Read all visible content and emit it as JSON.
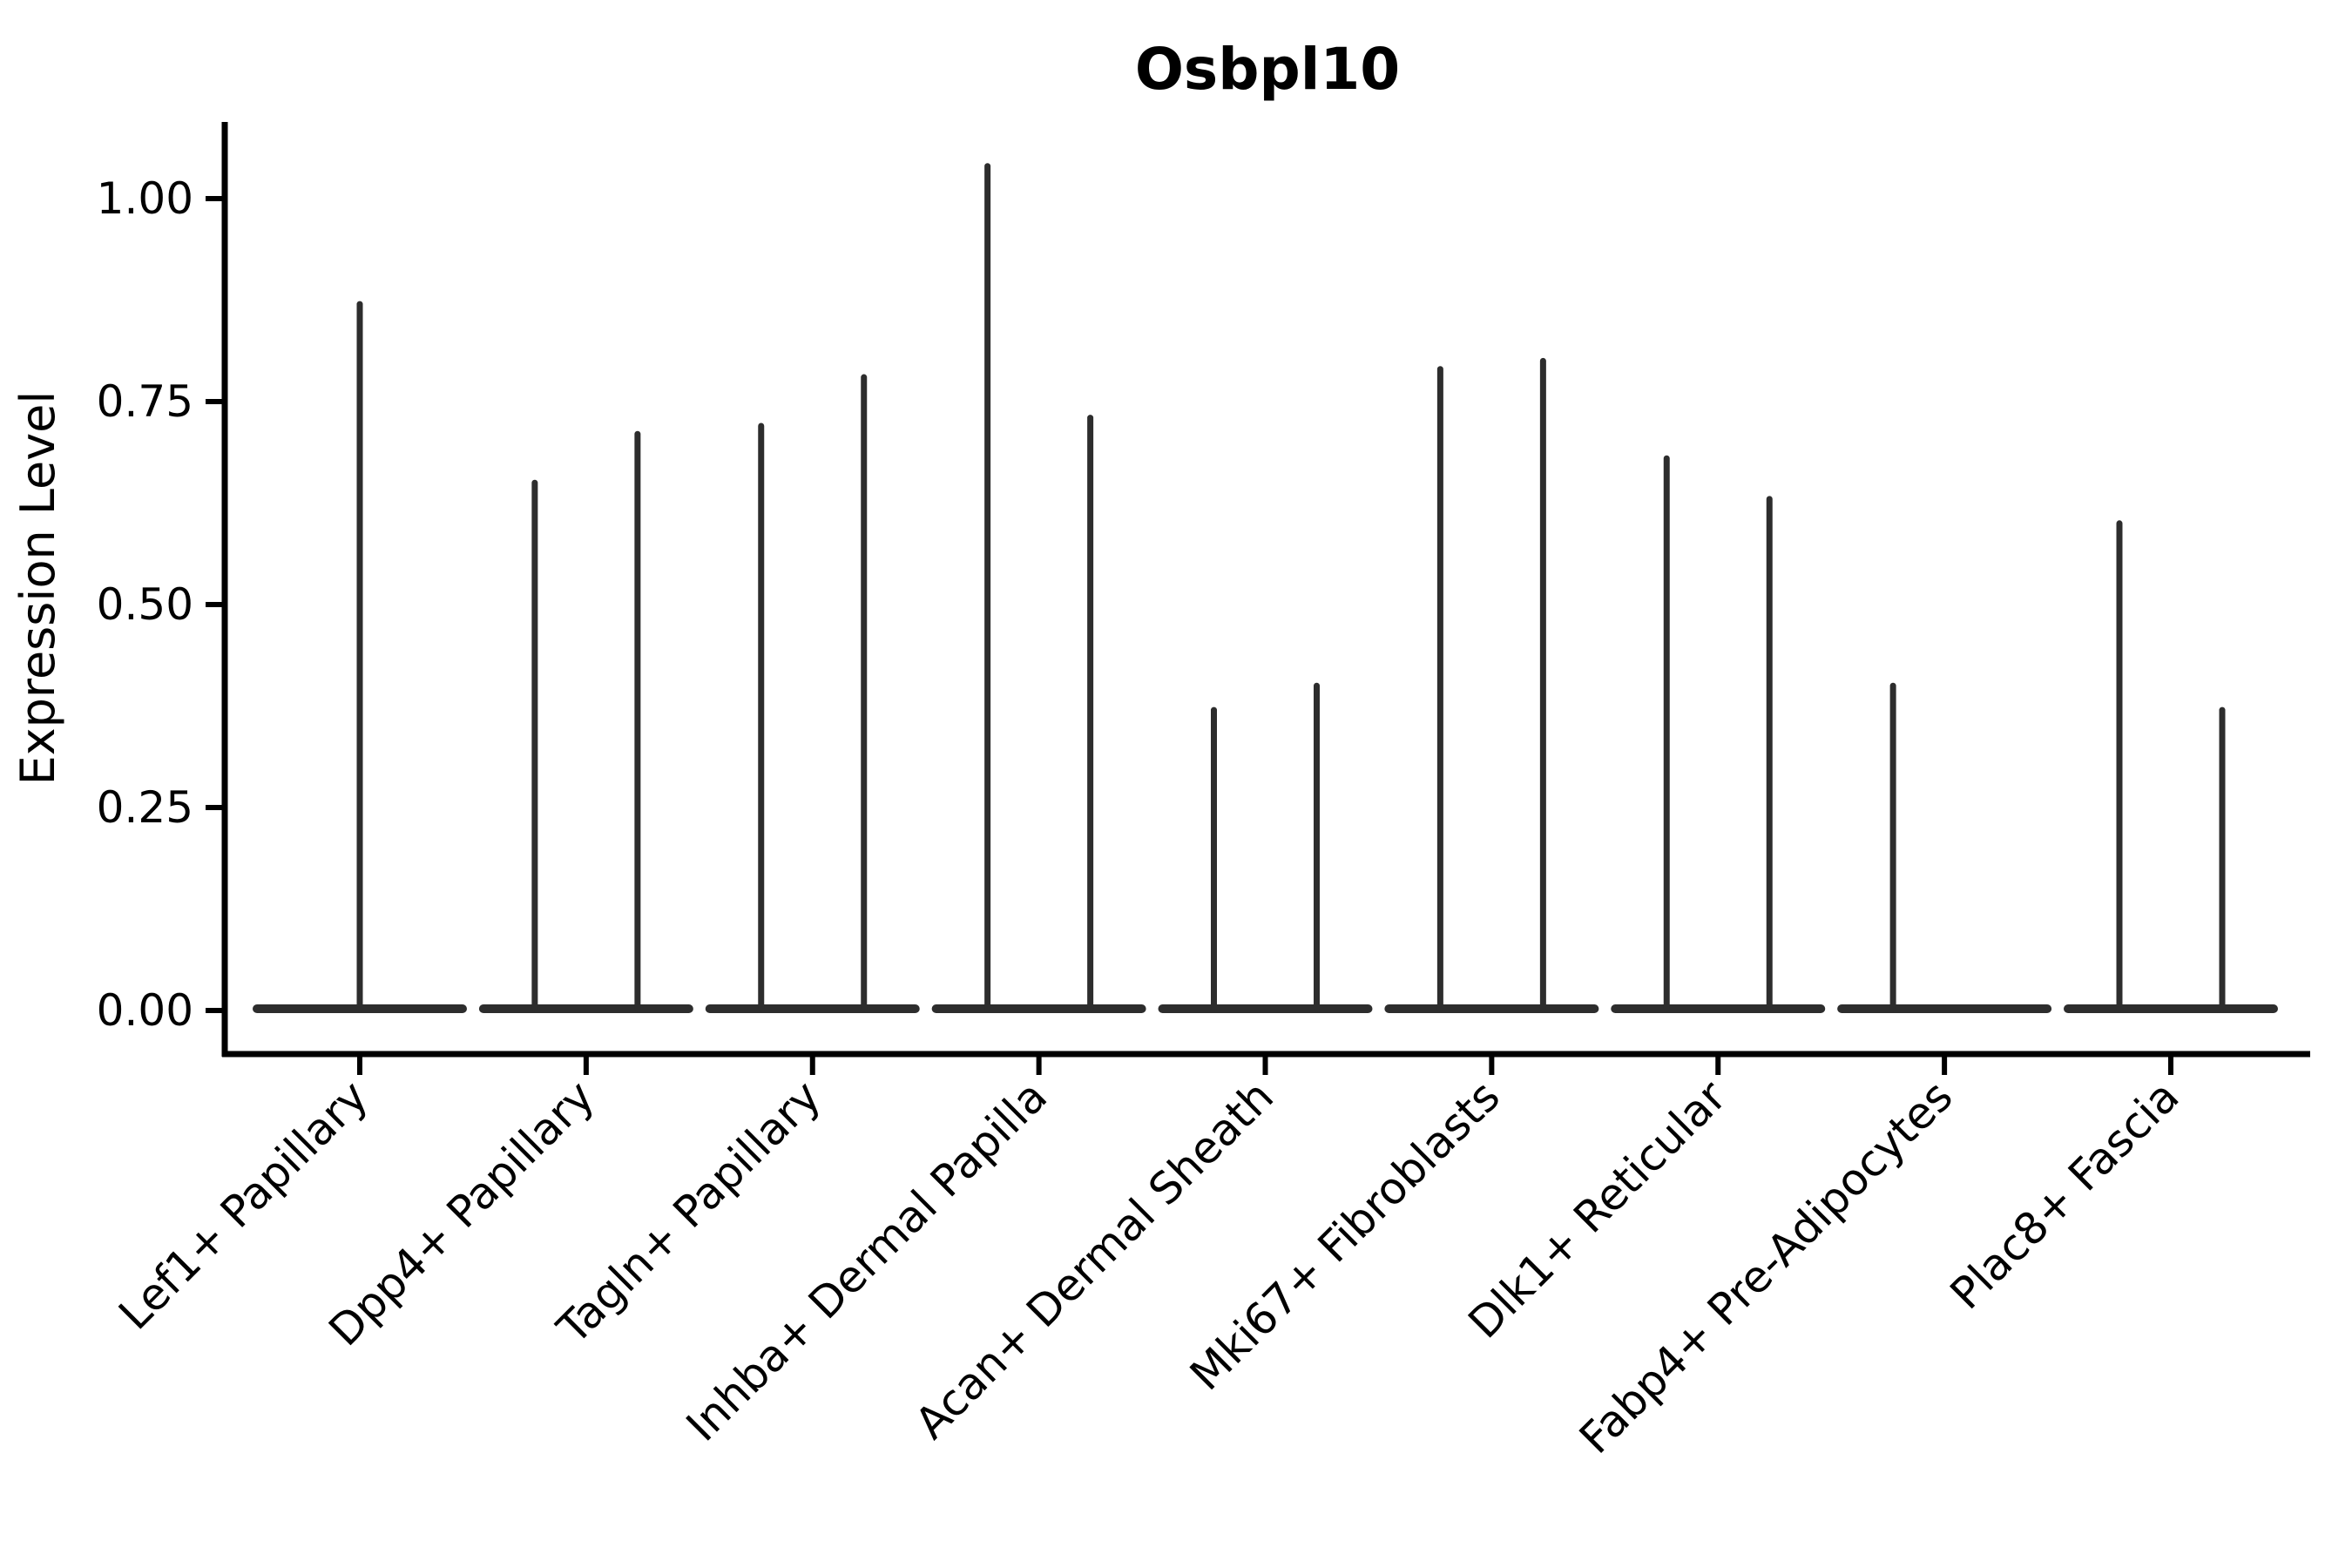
{
  "chart_data": {
    "type": "violin",
    "title": "Osbpl10",
    "ylabel": "Expression Level",
    "xlabel": "",
    "grid": false,
    "legend": "none",
    "ylim": [
      -0.054,
      1.094
    ],
    "yticks": [
      {
        "value": 0.0,
        "label": "0.00"
      },
      {
        "value": 0.25,
        "label": "0.25"
      },
      {
        "value": 0.5,
        "label": "0.50"
      },
      {
        "value": 0.75,
        "label": "0.75"
      },
      {
        "value": 1.0,
        "label": "1.00"
      }
    ],
    "categories": [
      "Lef1+ Papillary",
      "Dpp4+ Papillary",
      "Tagln+ Papillary",
      "Inhba+ Dermal Papilla",
      "Acan+ Dermal Sheath",
      "Mki67+ Fibroblasts",
      "Dlk1+ Reticular",
      "Fabp4+ Pre-Adipocytes",
      "Plac8+ Fascia"
    ],
    "violins": [
      {
        "category": "Lef1+ Papillary",
        "baseline": 0.0,
        "spikes": [
          {
            "offset": 0,
            "max": 0.87
          }
        ]
      },
      {
        "category": "Dpp4+ Papillary",
        "baseline": 0.0,
        "spikes": [
          {
            "offset": -1,
            "max": 0.65
          },
          {
            "offset": 1,
            "max": 0.71
          }
        ]
      },
      {
        "category": "Tagln+ Papillary",
        "baseline": 0.0,
        "spikes": [
          {
            "offset": -1,
            "max": 0.72
          },
          {
            "offset": 1,
            "max": 0.78
          }
        ]
      },
      {
        "category": "Inhba+ Dermal Papilla",
        "baseline": 0.0,
        "spikes": [
          {
            "offset": -1,
            "max": 1.04
          },
          {
            "offset": 1,
            "max": 0.73
          }
        ]
      },
      {
        "category": "Acan+ Dermal Sheath",
        "baseline": 0.0,
        "spikes": [
          {
            "offset": -1,
            "max": 0.37
          },
          {
            "offset": 1,
            "max": 0.4
          }
        ]
      },
      {
        "category": "Mki67+ Fibroblasts",
        "baseline": 0.0,
        "spikes": [
          {
            "offset": -1,
            "max": 0.79
          },
          {
            "offset": 1,
            "max": 0.8
          }
        ]
      },
      {
        "category": "Dlk1+ Reticular",
        "baseline": 0.0,
        "spikes": [
          {
            "offset": -1,
            "max": 0.68
          },
          {
            "offset": 1,
            "max": 0.63
          }
        ]
      },
      {
        "category": "Fabp4+ Pre-Adipocytes",
        "baseline": 0.0,
        "spikes": [
          {
            "offset": -1,
            "max": 0.4
          }
        ]
      },
      {
        "category": "Plac8+ Fascia",
        "baseline": 0.0,
        "spikes": [
          {
            "offset": -1,
            "max": 0.6
          },
          {
            "offset": 1,
            "max": 0.37
          }
        ]
      }
    ],
    "colors": {
      "violin": "#2d2d2d",
      "axis": "#000000",
      "text": "#000000",
      "background": "#ffffff"
    }
  }
}
